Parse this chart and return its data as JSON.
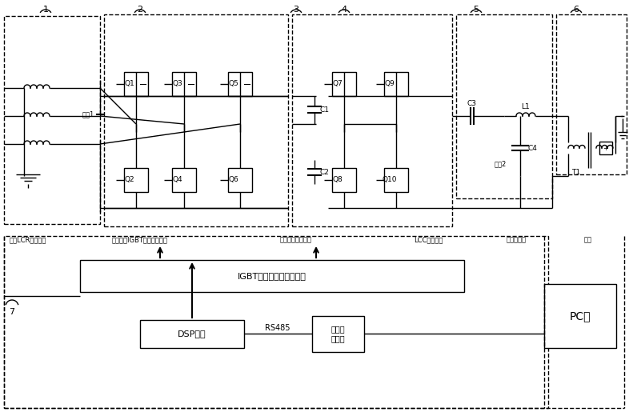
{
  "title": "",
  "bg_color": "#ffffff",
  "line_color": "#000000",
  "dashed_color": "#000000",
  "fig_width": 7.86,
  "fig_height": 5.25,
  "labels": {
    "block1": "1",
    "block2": "2",
    "block3": "3",
    "block4": "4",
    "block5": "5",
    "block6": "6",
    "block7": "7",
    "q1": "Q1",
    "q2": "Q2",
    "q3": "Q3",
    "q4": "Q4",
    "q5": "Q5",
    "q6": "Q6",
    "q7": "Q7",
    "q8": "Q8",
    "q9": "Q9",
    "q10": "Q10",
    "c1": "C1",
    "c2": "C2",
    "c3": "C3",
    "c4": "C4",
    "l1": "L1",
    "t1": "T1",
    "sample1": "采样1",
    "sample2": "采样2",
    "label_bottom1": "三相LCR滤波电路",
    "label_bottom2": "三相全桥IGBT整流调压电路",
    "label_bottom3": "单相全桥逆变电路",
    "label_bottom4": "LCC谐振电路",
    "label_bottom5": "高频变压器",
    "label_bottom6": "本体",
    "igbt_box": "IGBT驱动电路、采样电路",
    "dsp_box": "DSP控制",
    "rs485_label": "RS485",
    "hmi_box": "人机交\n互界面",
    "pc_box": "PC机"
  }
}
